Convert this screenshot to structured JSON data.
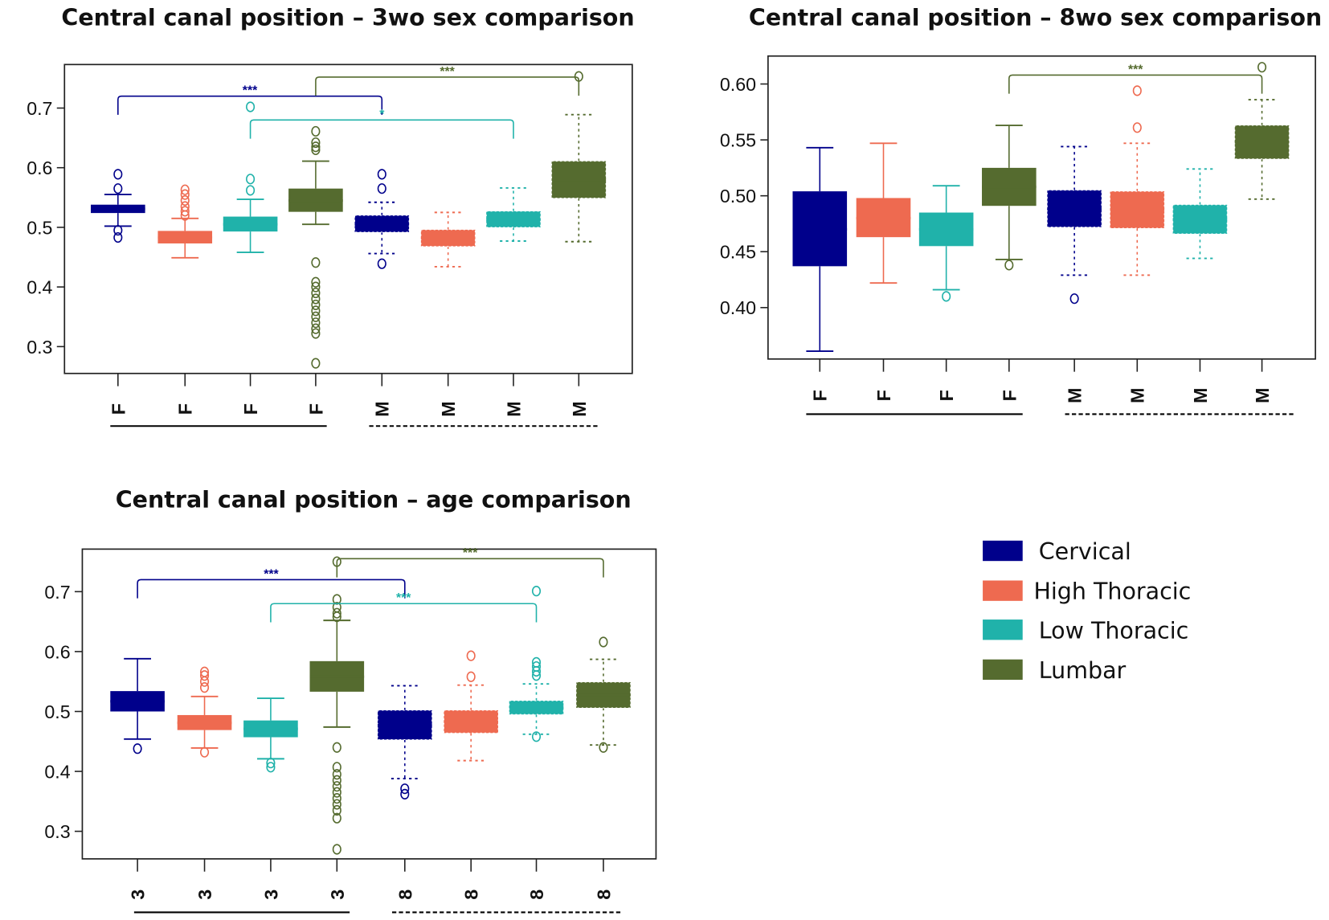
{
  "colors": {
    "Cervical": "#00008B",
    "High Thoracic": "#EE6A50",
    "Low Thoracic": "#20B2AA",
    "Lumbar": "#556B2F"
  },
  "legend": {
    "placement": "right",
    "entries": [
      "Cervical",
      "High Thoracic",
      "Low Thoracic",
      "Lumbar"
    ]
  },
  "chart_data": [
    {
      "type": "box",
      "title": "Central canal position – 3wo sex comparison",
      "categories": [
        "F",
        "F",
        "F",
        "F",
        "M",
        "M",
        "M",
        "M"
      ],
      "ylim": [
        0.255,
        0.773
      ],
      "yticks": [
        "0.3",
        "0.4",
        "0.5",
        "0.6",
        "0.7"
      ],
      "grid": false,
      "boxes": [
        {
          "region": "Cervical",
          "whisker_low": 0.502,
          "q1": 0.524,
          "median": 0.531,
          "q3": 0.538,
          "whisker_high": 0.555,
          "outliers": [
            0.589,
            0.565,
            0.495,
            0.483
          ]
        },
        {
          "region": "High Thoracic",
          "whisker_low": 0.449,
          "q1": 0.473,
          "median": 0.483,
          "q3": 0.494,
          "whisker_high": 0.515,
          "outliers": [
            0.563,
            0.555,
            0.545,
            0.535,
            0.527,
            0.52
          ]
        },
        {
          "region": "Low Thoracic",
          "whisker_low": 0.458,
          "q1": 0.493,
          "median": 0.505,
          "q3": 0.518,
          "whisker_high": 0.547,
          "outliers": [
            0.702,
            0.581,
            0.562
          ]
        },
        {
          "region": "Lumbar",
          "whisker_low": 0.505,
          "q1": 0.526,
          "median": 0.545,
          "q3": 0.565,
          "whisker_high": 0.611,
          "outliers": [
            0.661,
            0.642,
            0.635,
            0.63,
            0.441,
            0.408,
            0.4,
            0.39,
            0.38,
            0.37,
            0.36,
            0.35,
            0.34,
            0.33,
            0.322,
            0.272
          ]
        },
        {
          "region": "Cervical",
          "whisker_low": 0.456,
          "q1": 0.492,
          "median": 0.505,
          "q3": 0.52,
          "whisker_high": 0.542,
          "outliers": [
            0.589,
            0.565,
            0.439
          ]
        },
        {
          "region": "High Thoracic",
          "whisker_low": 0.434,
          "q1": 0.468,
          "median": 0.482,
          "q3": 0.496,
          "whisker_high": 0.525,
          "outliers": []
        },
        {
          "region": "Low Thoracic",
          "whisker_low": 0.477,
          "q1": 0.5,
          "median": 0.513,
          "q3": 0.527,
          "whisker_high": 0.566,
          "outliers": []
        },
        {
          "region": "Lumbar",
          "whisker_low": 0.476,
          "q1": 0.549,
          "median": 0.58,
          "q3": 0.611,
          "whisker_high": 0.689,
          "outliers": [
            0.753
          ]
        }
      ],
      "annotations": [
        {
          "from": 1,
          "to": 5,
          "label": "***",
          "region": "Cervical",
          "level": 0.72
        },
        {
          "from": 4,
          "to": 8,
          "label": "***",
          "region": "Lumbar",
          "level": 0.752
        },
        {
          "from": 3,
          "to": 7,
          "label": "*",
          "region": "Low Thoracic",
          "level": 0.68
        }
      ]
    },
    {
      "type": "box",
      "title": "Central canal position – 8wo sex comparison",
      "categories": [
        "F",
        "F",
        "F",
        "F",
        "M",
        "M",
        "M",
        "M"
      ],
      "ylim": [
        0.354,
        0.625
      ],
      "yticks": [
        "0.40",
        "0.45",
        "0.50",
        "0.55",
        "0.60"
      ],
      "grid": false,
      "boxes": [
        {
          "region": "Cervical",
          "whisker_low": 0.361,
          "q1": 0.437,
          "median": 0.47,
          "q3": 0.504,
          "whisker_high": 0.543,
          "outliers": []
        },
        {
          "region": "High Thoracic",
          "whisker_low": 0.422,
          "q1": 0.463,
          "median": 0.48,
          "q3": 0.498,
          "whisker_high": 0.547,
          "outliers": []
        },
        {
          "region": "Low Thoracic",
          "whisker_low": 0.416,
          "q1": 0.455,
          "median": 0.47,
          "q3": 0.485,
          "whisker_high": 0.509,
          "outliers": [
            0.41
          ]
        },
        {
          "region": "Lumbar",
          "whisker_low": 0.443,
          "q1": 0.491,
          "median": 0.508,
          "q3": 0.525,
          "whisker_high": 0.563,
          "outliers": [
            0.438
          ]
        },
        {
          "region": "Cervical",
          "whisker_low": 0.429,
          "q1": 0.472,
          "median": 0.488,
          "q3": 0.505,
          "whisker_high": 0.544,
          "outliers": [
            0.408
          ]
        },
        {
          "region": "High Thoracic",
          "whisker_low": 0.429,
          "q1": 0.471,
          "median": 0.488,
          "q3": 0.504,
          "whisker_high": 0.547,
          "outliers": [
            0.594,
            0.561
          ]
        },
        {
          "region": "Low Thoracic",
          "whisker_low": 0.444,
          "q1": 0.466,
          "median": 0.479,
          "q3": 0.492,
          "whisker_high": 0.524,
          "outliers": []
        },
        {
          "region": "Lumbar",
          "whisker_low": 0.497,
          "q1": 0.533,
          "median": 0.548,
          "q3": 0.563,
          "whisker_high": 0.586,
          "outliers": [
            0.615
          ]
        }
      ],
      "annotations": [
        {
          "from": 4,
          "to": 8,
          "label": "***",
          "region": "Lumbar",
          "level": 0.608
        }
      ]
    },
    {
      "type": "box",
      "title": "Central canal position – age comparison",
      "categories": [
        "3",
        "3",
        "3",
        "3",
        "8",
        "8",
        "8",
        "8"
      ],
      "ylim": [
        0.254,
        0.771
      ],
      "yticks": [
        "0.3",
        "0.4",
        "0.5",
        "0.6",
        "0.7"
      ],
      "grid": false,
      "boxes": [
        {
          "region": "Cervical",
          "whisker_low": 0.454,
          "q1": 0.5,
          "median": 0.517,
          "q3": 0.534,
          "whisker_high": 0.588,
          "outliers": [
            0.438
          ]
        },
        {
          "region": "High Thoracic",
          "whisker_low": 0.439,
          "q1": 0.469,
          "median": 0.481,
          "q3": 0.494,
          "whisker_high": 0.525,
          "outliers": [
            0.566,
            0.56,
            0.55,
            0.54,
            0.432
          ]
        },
        {
          "region": "Low Thoracic",
          "whisker_low": 0.421,
          "q1": 0.457,
          "median": 0.471,
          "q3": 0.485,
          "whisker_high": 0.522,
          "outliers": [
            0.414,
            0.407
          ]
        },
        {
          "region": "Lumbar",
          "whisker_low": 0.474,
          "q1": 0.533,
          "median": 0.558,
          "q3": 0.584,
          "whisker_high": 0.652,
          "outliers": [
            0.75,
            0.687,
            0.674,
            0.664,
            0.658,
            0.44,
            0.407,
            0.395,
            0.385,
            0.375,
            0.365,
            0.355,
            0.345,
            0.335,
            0.322,
            0.27
          ]
        },
        {
          "region": "Cervical",
          "whisker_low": 0.388,
          "q1": 0.453,
          "median": 0.477,
          "q3": 0.502,
          "whisker_high": 0.543,
          "outliers": [
            0.371,
            0.362
          ]
        },
        {
          "region": "High Thoracic",
          "whisker_low": 0.418,
          "q1": 0.464,
          "median": 0.483,
          "q3": 0.502,
          "whisker_high": 0.544,
          "outliers": [
            0.593,
            0.558
          ]
        },
        {
          "region": "Low Thoracic",
          "whisker_low": 0.462,
          "q1": 0.495,
          "median": 0.507,
          "q3": 0.518,
          "whisker_high": 0.546,
          "outliers": [
            0.701,
            0.582,
            0.575,
            0.567,
            0.56,
            0.458
          ]
        },
        {
          "region": "Lumbar",
          "whisker_low": 0.444,
          "q1": 0.506,
          "median": 0.527,
          "q3": 0.549,
          "whisker_high": 0.587,
          "outliers": [
            0.616,
            0.44
          ]
        }
      ],
      "annotations": [
        {
          "from": 1,
          "to": 5,
          "label": "***",
          "region": "Cervical",
          "level": 0.72
        },
        {
          "from": 4,
          "to": 8,
          "label": "***",
          "region": "Lumbar",
          "level": 0.755
        },
        {
          "from": 3,
          "to": 7,
          "label": "***",
          "region": "Low Thoracic",
          "level": 0.68
        }
      ]
    }
  ]
}
